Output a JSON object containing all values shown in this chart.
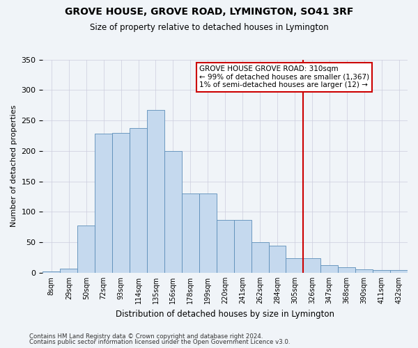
{
  "title": "GROVE HOUSE, GROVE ROAD, LYMINGTON, SO41 3RF",
  "subtitle": "Size of property relative to detached houses in Lymington",
  "xlabel": "Distribution of detached houses by size in Lymington",
  "ylabel": "Number of detached properties",
  "bar_color": "#c5d9ee",
  "bar_edge_color": "#5b8db8",
  "categories": [
    "8sqm",
    "29sqm",
    "50sqm",
    "72sqm",
    "93sqm",
    "114sqm",
    "135sqm",
    "156sqm",
    "178sqm",
    "199sqm",
    "220sqm",
    "241sqm",
    "262sqm",
    "284sqm",
    "305sqm",
    "326sqm",
    "347sqm",
    "368sqm",
    "390sqm",
    "411sqm",
    "432sqm"
  ],
  "heights": [
    2,
    7,
    78,
    228,
    230,
    238,
    267,
    200,
    130,
    130,
    87,
    87,
    50,
    45,
    24,
    24,
    12,
    9,
    6,
    5,
    4
  ],
  "ylim": [
    0,
    350
  ],
  "yticks": [
    0,
    50,
    100,
    150,
    200,
    250,
    300,
    350
  ],
  "marker_line_color": "#cc0000",
  "marker_idx": 14,
  "annotation_text": "GROVE HOUSE GROVE ROAD: 310sqm\n← 99% of detached houses are smaller (1,367)\n1% of semi-detached houses are larger (12) →",
  "footer1": "Contains HM Land Registry data © Crown copyright and database right 2024.",
  "footer2": "Contains public sector information licensed under the Open Government Licence v3.0.",
  "background_color": "#f0f4f8",
  "grid_color": "#ccccdd"
}
